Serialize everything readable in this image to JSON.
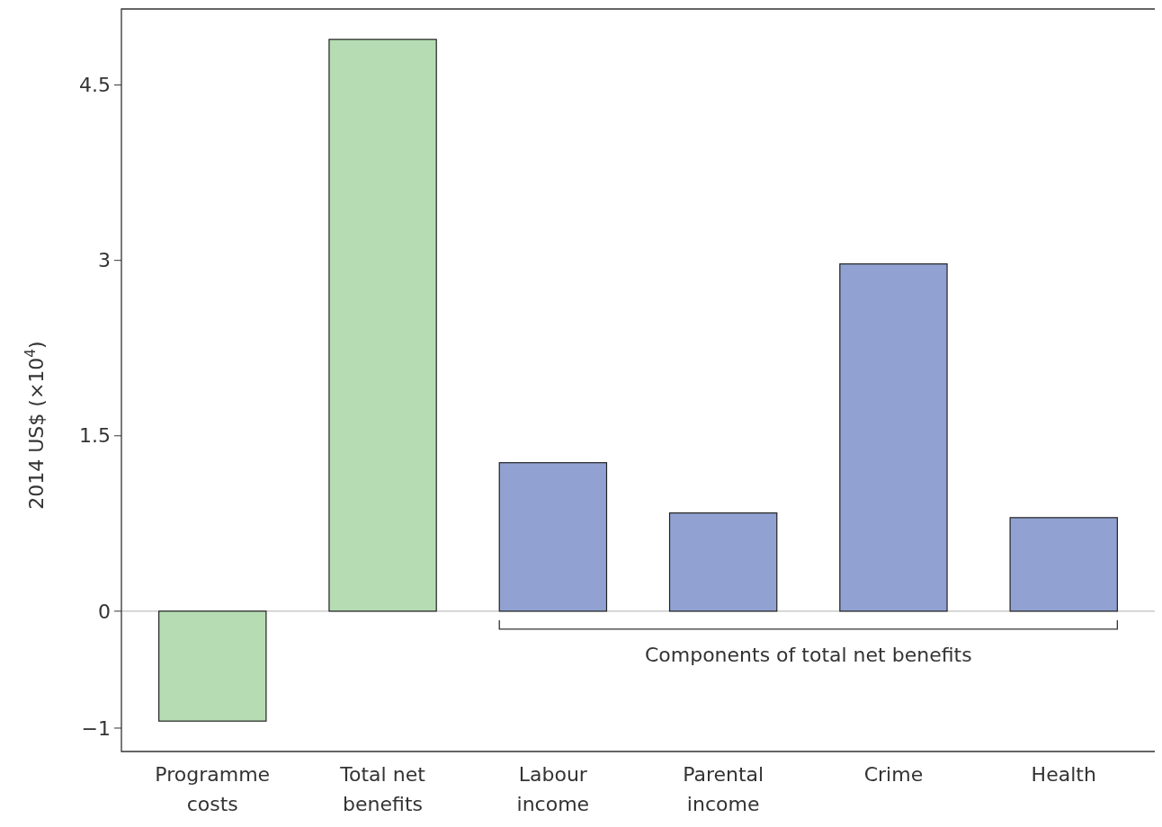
{
  "chart_data": {
    "type": "bar",
    "ylabel": "2014 US$ (×10$^{4}$)",
    "categories": [
      "Programme costs",
      "Total net benefits",
      "Labour income",
      "Parental income",
      "Crime",
      "Health"
    ],
    "values": [
      -0.94,
      4.89,
      1.27,
      0.84,
      2.97,
      0.8
    ],
    "colors": [
      "#b6dcb4",
      "#b6dcb4",
      "#91a2d2",
      "#91a2d2",
      "#91a2d2",
      "#91a2d2"
    ],
    "ylim": [
      -1.2,
      5.15
    ],
    "yticks": [
      -1,
      0,
      1.5,
      3,
      4.5
    ],
    "ref_lines": [
      {
        "axis": "y",
        "value": 0,
        "color": "#c0c0c0"
      }
    ],
    "annotations": [
      "Components of total net benefits"
    ],
    "grid": false
  }
}
